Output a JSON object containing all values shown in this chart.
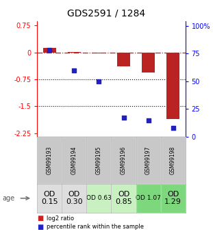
{
  "title": "GDS2591 / 1284",
  "samples": [
    "GSM99193",
    "GSM99194",
    "GSM99195",
    "GSM99196",
    "GSM99197",
    "GSM99198"
  ],
  "log2_ratio": [
    0.13,
    0.02,
    -0.02,
    -0.38,
    -0.55,
    -1.85
  ],
  "percentile_rank": [
    78,
    60,
    50,
    17,
    15,
    8
  ],
  "age_labels": [
    "OD\n0.15",
    "OD\n0.30",
    "OD 0.63",
    "OD\n0.85",
    "OD 1.07",
    "OD\n1.29"
  ],
  "age_bg_colors": [
    "#dedede",
    "#dedede",
    "#c8f0c0",
    "#c8f0c0",
    "#7dd87d",
    "#7dd87d"
  ],
  "age_font_sizes": [
    8,
    8,
    6.5,
    8,
    6.5,
    8
  ],
  "bar_color": "#bb2222",
  "dot_color": "#2222bb",
  "ylim_left": [
    -2.35,
    0.87
  ],
  "ylim_right": [
    0,
    104
  ],
  "yticks_left": [
    0.75,
    0.0,
    -0.75,
    -1.5,
    -2.25
  ],
  "yticks_right": [
    100,
    75,
    50,
    25,
    0
  ],
  "hline_y": [
    0.0,
    -0.75,
    -1.5
  ],
  "header_bg": "#c8c8c8",
  "legend_square_red": "#cc2222",
  "legend_square_blue": "#2222cc"
}
